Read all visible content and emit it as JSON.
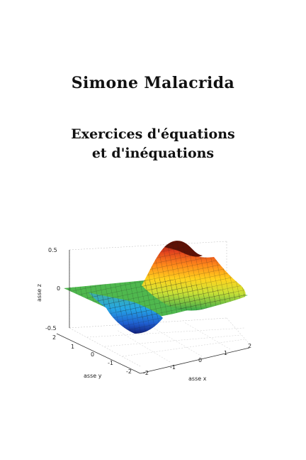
{
  "cover": {
    "author": "Simone Malacrida",
    "title_line1": "Exercices d'équations",
    "title_line2": "et d'inéquations"
  },
  "figure": {
    "z_label": "asse z",
    "y_label": "asse y",
    "x_label": "asse x",
    "z_ticks": [
      "0.5",
      "0",
      "-0.5"
    ],
    "y_ticks": [
      "2",
      "1",
      "0",
      "-1",
      "-2"
    ],
    "x_ticks": [
      "-2",
      "-1",
      "0",
      "1",
      "2"
    ]
  }
}
